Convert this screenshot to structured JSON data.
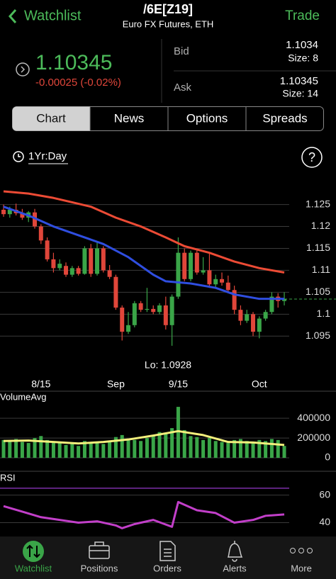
{
  "header": {
    "back": "Watchlist",
    "symbol": "/6E[Z19]",
    "subtitle": "Euro FX Futures, ETH",
    "action": "Trade"
  },
  "quote": {
    "last": "1.10345",
    "change": "-0.00025 (-0.02%)",
    "bid_label": "Bid",
    "bid": "1.1034",
    "bid_size": "Size: 8",
    "ask_label": "Ask",
    "ask": "1.10345",
    "ask_size": "Size: 14"
  },
  "tabs": [
    "Chart",
    "News",
    "Options",
    "Spreads"
  ],
  "timeframe": "1Yr:Day",
  "help": "?",
  "chart_data": [
    {
      "type": "candlestick",
      "up_color": "#3aa548",
      "down_color": "#e0463a",
      "candles": [
        [
          1.1238,
          1.125,
          1.1222,
          1.1228
        ],
        [
          1.1228,
          1.1245,
          1.122,
          1.1238
        ],
        [
          1.1238,
          1.1252,
          1.1225,
          1.123
        ],
        [
          1.123,
          1.124,
          1.1215,
          1.122
        ],
        [
          1.122,
          1.1235,
          1.121,
          1.1232
        ],
        [
          1.1232,
          1.124,
          1.1195,
          1.12
        ],
        [
          1.12,
          1.1205,
          1.116,
          1.1168
        ],
        [
          1.1168,
          1.1175,
          1.112,
          1.1125
        ],
        [
          1.1125,
          1.114,
          1.1095,
          1.1105
        ],
        [
          1.1105,
          1.1125,
          1.11,
          1.1115
        ],
        [
          1.111,
          1.1118,
          1.1085,
          1.109
        ],
        [
          1.109,
          1.111,
          1.1085,
          1.1105
        ],
        [
          1.1105,
          1.111,
          1.1088,
          1.1092
        ],
        [
          1.1092,
          1.1155,
          1.109,
          1.115
        ],
        [
          1.115,
          1.116,
          1.1085,
          1.1092
        ],
        [
          1.1092,
          1.1165,
          1.1088,
          1.115
        ],
        [
          1.115,
          1.1155,
          1.1095,
          1.11
        ],
        [
          1.11,
          1.1112,
          1.108,
          1.1085
        ],
        [
          1.1085,
          1.109,
          1.101,
          1.1015
        ],
        [
          1.1015,
          1.102,
          1.094,
          1.096
        ],
        [
          1.096,
          1.1005,
          1.0955,
          1.0975
        ],
        [
          1.0975,
          1.103,
          1.097,
          1.1025
        ],
        [
          1.1025,
          1.103,
          1.1005,
          1.101
        ],
        [
          1.101,
          1.106,
          1.1005,
          1.1012
        ],
        [
          1.1012,
          1.102,
          1.1,
          1.1005
        ],
        [
          1.1005,
          1.1025,
          1.1,
          1.102
        ],
        [
          1.102,
          1.104,
          1.0965,
          1.0975
        ],
        [
          1.0975,
          1.1045,
          1.0928,
          1.104
        ],
        [
          1.104,
          1.1175,
          1.1035,
          1.114
        ],
        [
          1.114,
          1.115,
          1.1075,
          1.108
        ],
        [
          1.108,
          1.1145,
          1.1075,
          1.114
        ],
        [
          1.114,
          1.1145,
          1.109,
          1.1095
        ],
        [
          1.1095,
          1.113,
          1.109,
          1.11
        ],
        [
          1.11,
          1.114,
          1.106,
          1.1068
        ],
        [
          1.1068,
          1.109,
          1.106,
          1.108
        ],
        [
          1.108,
          1.1095,
          1.1065,
          1.1072
        ],
        [
          1.1072,
          1.1088,
          1.105,
          1.1055
        ],
        [
          1.1055,
          1.1065,
          1.1,
          1.101
        ],
        [
          1.101,
          1.102,
          1.0975,
          1.0985
        ],
        [
          1.0985,
          1.101,
          1.098,
          1.1
        ],
        [
          1.1,
          1.1005,
          1.095,
          1.096
        ],
        [
          1.096,
          1.0995,
          1.0945,
          1.099
        ],
        [
          1.099,
          1.101,
          1.0985,
          1.1005
        ],
        [
          1.1005,
          1.105,
          1.1,
          1.104
        ],
        [
          1.104,
          1.1048,
          1.1015,
          1.103
        ],
        [
          1.103,
          1.105,
          1.102,
          1.1034
        ]
      ],
      "lines": [
        {
          "color": "#ec4b35",
          "x": [
            0,
            4,
            8,
            11,
            14,
            18,
            22,
            26,
            29,
            33,
            37,
            41,
            45
          ],
          "values": [
            1.128,
            1.1275,
            1.1265,
            1.1255,
            1.1245,
            1.122,
            1.12,
            1.1175,
            1.1155,
            1.114,
            1.112,
            1.1105,
            1.1095
          ]
        },
        {
          "color": "#2f4ee0",
          "x": [
            0,
            4,
            8,
            12,
            16,
            20,
            24,
            26,
            30,
            34,
            37,
            41,
            45
          ],
          "values": [
            1.1245,
            1.1225,
            1.12,
            1.118,
            1.116,
            1.113,
            1.109,
            1.1075,
            1.107,
            1.106,
            1.1045,
            1.1035,
            1.1035
          ]
        }
      ],
      "last_line": 1.10345,
      "last_line_color": "#3aa548",
      "annotation": "Lo: 1.0928",
      "xlim": [
        -0.57,
        46.02
      ],
      "ylim": [
        1.086,
        1.128
      ],
      "yticks": [
        1.125,
        1.12,
        1.115,
        1.11,
        1.105,
        1.1,
        1.095
      ],
      "xticks": [
        {
          "value": 6,
          "label": "8/15"
        },
        {
          "value": 18,
          "label": "Sep"
        },
        {
          "value": 28,
          "label": "9/15"
        },
        {
          "value": 41,
          "label": "Oct"
        }
      ]
    },
    {
      "type": "bar",
      "title": "VolumeAvg",
      "color": "#3aa548",
      "values": [
        180000,
        170000,
        190000,
        160000,
        150000,
        200000,
        220000,
        180000,
        160000,
        150000,
        130000,
        140000,
        120000,
        170000,
        150000,
        160000,
        140000,
        170000,
        210000,
        230000,
        190000,
        180000,
        170000,
        200000,
        220000,
        260000,
        240000,
        300000,
        515000,
        280000,
        220000,
        210000,
        180000,
        200000,
        170000,
        160000,
        150000,
        180000,
        190000,
        170000,
        160000,
        180000,
        170000,
        190000,
        180000,
        120000
      ],
      "lines": [
        {
          "color": "#f3f07c",
          "x": [
            0,
            4,
            8,
            12,
            16,
            20,
            24,
            28,
            32,
            36,
            40,
            45
          ],
          "values": [
            170000,
            175000,
            160000,
            145000,
            160000,
            185000,
            225000,
            270000,
            230000,
            160000,
            155000,
            130000
          ]
        }
      ],
      "xlim": [
        -0.57,
        46.02
      ],
      "ylim": [
        0,
        530000
      ],
      "yticks": [
        0,
        200000,
        400000
      ]
    },
    {
      "type": "line",
      "title": "RSI",
      "level": 65,
      "level_color": "#7b2fa8",
      "lines": [
        {
          "color": "#c23fc9",
          "x": [
            0,
            3,
            6,
            9,
            12,
            15,
            18,
            19,
            21,
            24,
            27,
            28,
            31,
            34,
            37,
            40,
            42,
            45
          ],
          "values": [
            52,
            48,
            44,
            42,
            40,
            41,
            38,
            36,
            39,
            42,
            37,
            55,
            49,
            47,
            40,
            42,
            45,
            46
          ]
        }
      ],
      "xlim": [
        -0.57,
        46.02
      ],
      "ylim": [
        30,
        67
      ],
      "yticks": [
        60,
        40
      ]
    }
  ],
  "nav": [
    "Watchlist",
    "Positions",
    "Orders",
    "Alerts",
    "More"
  ]
}
